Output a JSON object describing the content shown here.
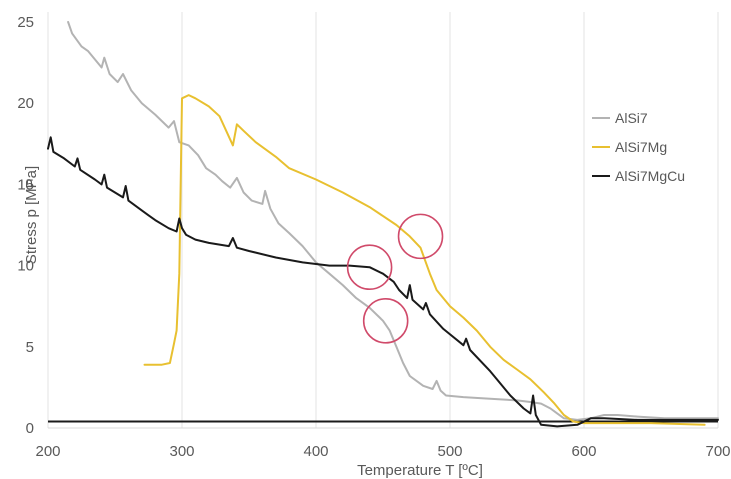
{
  "chart_data": {
    "type": "line",
    "title": "",
    "xlabel": "Temperature T [ºC]",
    "ylabel": "Stress p [MPa]",
    "xlim": [
      200,
      700
    ],
    "ylim": [
      0,
      25
    ],
    "x_ticks": [
      "200",
      "300",
      "400",
      "500",
      "600",
      "700"
    ],
    "y_ticks": [
      "0",
      "5",
      "10",
      "15",
      "20",
      "25"
    ],
    "grid": "vertical",
    "legend_position": "right",
    "series": [
      {
        "name": "AlSi7",
        "color": "#b3b3b3",
        "points": [
          [
            215,
            25
          ],
          [
            218,
            24.3
          ],
          [
            225,
            23.5
          ],
          [
            230,
            23.2
          ],
          [
            240,
            22.2
          ],
          [
            242,
            22.8
          ],
          [
            246,
            21.8
          ],
          [
            252,
            21.3
          ],
          [
            256,
            21.8
          ],
          [
            262,
            20.8
          ],
          [
            270,
            20.0
          ],
          [
            280,
            19.3
          ],
          [
            290,
            18.5
          ],
          [
            294,
            18.9
          ],
          [
            298,
            17.6
          ],
          [
            305,
            17.4
          ],
          [
            312,
            16.8
          ],
          [
            318,
            16.0
          ],
          [
            325,
            15.6
          ],
          [
            330,
            15.2
          ],
          [
            336,
            14.8
          ],
          [
            341,
            15.4
          ],
          [
            346,
            14.5
          ],
          [
            352,
            14.0
          ],
          [
            360,
            13.8
          ],
          [
            362,
            14.6
          ],
          [
            366,
            13.5
          ],
          [
            372,
            12.6
          ],
          [
            380,
            12.0
          ],
          [
            390,
            11.2
          ],
          [
            400,
            10.2
          ],
          [
            410,
            9.5
          ],
          [
            420,
            8.8
          ],
          [
            430,
            8.0
          ],
          [
            440,
            7.4
          ],
          [
            450,
            6.6
          ],
          [
            455,
            6.0
          ],
          [
            460,
            5.0
          ],
          [
            465,
            4.0
          ],
          [
            470,
            3.2
          ],
          [
            480,
            2.6
          ],
          [
            487,
            2.4
          ],
          [
            490,
            2.9
          ],
          [
            493,
            2.3
          ],
          [
            497,
            2.0
          ],
          [
            510,
            1.9
          ],
          [
            530,
            1.8
          ],
          [
            550,
            1.7
          ],
          [
            560,
            1.6
          ],
          [
            568,
            1.5
          ],
          [
            575,
            1.2
          ],
          [
            580,
            0.9
          ],
          [
            585,
            0.6
          ],
          [
            595,
            0.5
          ],
          [
            605,
            0.6
          ],
          [
            615,
            0.8
          ],
          [
            625,
            0.8
          ],
          [
            640,
            0.7
          ],
          [
            660,
            0.6
          ],
          [
            700,
            0.6
          ]
        ]
      },
      {
        "name": "AlSi7Mg",
        "color": "#e8c030",
        "points": [
          [
            272,
            3.9
          ],
          [
            285,
            3.9
          ],
          [
            291,
            4.0
          ],
          [
            294,
            5.2
          ],
          [
            296,
            6.0
          ],
          [
            298,
            9.5
          ],
          [
            300,
            20.3
          ],
          [
            305,
            20.5
          ],
          [
            310,
            20.3
          ],
          [
            320,
            19.8
          ],
          [
            328,
            19.2
          ],
          [
            333,
            18.3
          ],
          [
            338,
            17.4
          ],
          [
            341,
            18.7
          ],
          [
            346,
            18.3
          ],
          [
            355,
            17.6
          ],
          [
            370,
            16.7
          ],
          [
            380,
            16.0
          ],
          [
            400,
            15.3
          ],
          [
            420,
            14.5
          ],
          [
            440,
            13.6
          ],
          [
            460,
            12.5
          ],
          [
            470,
            11.8
          ],
          [
            478,
            11.1
          ],
          [
            485,
            9.5
          ],
          [
            490,
            8.5
          ],
          [
            500,
            7.5
          ],
          [
            510,
            6.8
          ],
          [
            520,
            6.0
          ],
          [
            530,
            5.0
          ],
          [
            540,
            4.2
          ],
          [
            550,
            3.6
          ],
          [
            560,
            3.0
          ],
          [
            570,
            2.2
          ],
          [
            578,
            1.5
          ],
          [
            585,
            0.8
          ],
          [
            592,
            0.4
          ],
          [
            600,
            0.3
          ],
          [
            620,
            0.3
          ],
          [
            650,
            0.3
          ],
          [
            690,
            0.2
          ]
        ]
      },
      {
        "name": "AlSi7MgCu",
        "color": "#1a1a1a",
        "points": [
          [
            200,
            17.2
          ],
          [
            202,
            17.9
          ],
          [
            204,
            17.0
          ],
          [
            212,
            16.6
          ],
          [
            220,
            16.1
          ],
          [
            222,
            16.6
          ],
          [
            224,
            15.9
          ],
          [
            235,
            15.3
          ],
          [
            240,
            15.0
          ],
          [
            242,
            15.6
          ],
          [
            244,
            14.8
          ],
          [
            250,
            14.5
          ],
          [
            256,
            14.2
          ],
          [
            258,
            14.9
          ],
          [
            260,
            14.0
          ],
          [
            270,
            13.4
          ],
          [
            275,
            13.1
          ],
          [
            280,
            12.8
          ],
          [
            290,
            12.3
          ],
          [
            296,
            12.1
          ],
          [
            298,
            12.9
          ],
          [
            300,
            12.3
          ],
          [
            303,
            11.9
          ],
          [
            310,
            11.6
          ],
          [
            320,
            11.4
          ],
          [
            335,
            11.2
          ],
          [
            338,
            11.7
          ],
          [
            341,
            11.1
          ],
          [
            350,
            10.9
          ],
          [
            370,
            10.5
          ],
          [
            390,
            10.2
          ],
          [
            410,
            10.0
          ],
          [
            425,
            10.0
          ],
          [
            440,
            9.9
          ],
          [
            450,
            9.5
          ],
          [
            458,
            9.0
          ],
          [
            462,
            8.5
          ],
          [
            468,
            8.0
          ],
          [
            470,
            8.8
          ],
          [
            472,
            7.9
          ],
          [
            480,
            7.3
          ],
          [
            482,
            7.7
          ],
          [
            485,
            7.0
          ],
          [
            495,
            6.1
          ],
          [
            510,
            5.1
          ],
          [
            512,
            5.5
          ],
          [
            515,
            4.8
          ],
          [
            530,
            3.5
          ],
          [
            545,
            2.0
          ],
          [
            555,
            1.2
          ],
          [
            560,
            0.9
          ],
          [
            562,
            2.0
          ],
          [
            564,
            0.8
          ],
          [
            568,
            0.2
          ],
          [
            580,
            0.1
          ],
          [
            595,
            0.2
          ],
          [
            605,
            0.6
          ],
          [
            615,
            0.6
          ],
          [
            640,
            0.5
          ],
          [
            670,
            0.5
          ],
          [
            700,
            0.5
          ]
        ]
      }
    ],
    "baseline_series": {
      "color": "#1a1a1a",
      "points": [
        [
          200,
          0.4
        ],
        [
          700,
          0.4
        ]
      ]
    },
    "annotations": [
      {
        "type": "circle",
        "color": "#d04a6a",
        "x": 478,
        "y": 11.8,
        "radius_units": 22
      },
      {
        "type": "circle",
        "color": "#d04a6a",
        "x": 440,
        "y": 9.9,
        "radius_units": 22
      },
      {
        "type": "circle",
        "color": "#d04a6a",
        "x": 452,
        "y": 6.6,
        "radius_units": 22
      }
    ]
  }
}
